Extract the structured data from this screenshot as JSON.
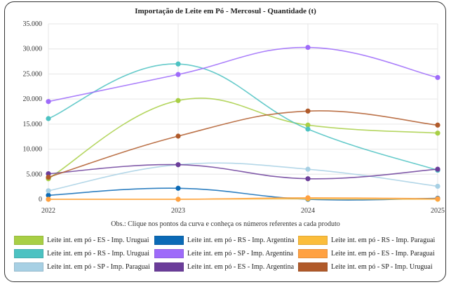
{
  "chart_data": {
    "type": "line",
    "title": "Importação de Leite em Pó - Mercosul - Quantidade (t)",
    "xlabel": "",
    "ylabel": "",
    "x": [
      "2022",
      "2023",
      "2024",
      "2025"
    ],
    "ylim": [
      0,
      35000
    ],
    "yticks": [
      "0",
      "5.000",
      "10.000",
      "15.000",
      "20.000",
      "25.000",
      "30.000",
      "35.000"
    ],
    "ytick_values": [
      0,
      5000,
      10000,
      15000,
      20000,
      25000,
      30000,
      35000
    ],
    "grid": true,
    "legend_position": "bottom",
    "series": [
      {
        "name": "Leite int. em pó - ES - Imp. Uruguai",
        "color": "#a8cf45",
        "values": [
          4100,
          19700,
          14800,
          13200
        ]
      },
      {
        "name": "Leite int. em pó - RS - Imp. Argentina",
        "color": "#0b6ab6",
        "values": [
          800,
          2200,
          0,
          200
        ]
      },
      {
        "name": "Leite int. em pó - RS - Imp. Paraguai",
        "color": "#fbbd3b",
        "values": [
          0,
          0,
          100,
          0
        ]
      },
      {
        "name": "Leite int. em pó - RS - Imp. Uruguai",
        "color": "#4cc2c2",
        "values": [
          16100,
          27000,
          14000,
          5800
        ]
      },
      {
        "name": "Leite int. em pó - SP - Imp. Argentina",
        "color": "#9e6bfa",
        "values": [
          19500,
          24900,
          30300,
          24300
        ]
      },
      {
        "name": "Leite int. em pó - ES - Imp. Paraguai",
        "color": "#ffa142",
        "values": [
          0,
          0,
          300,
          100
        ]
      },
      {
        "name": "Leite int. em pó - SP - Imp. Paraguai",
        "color": "#a7d0e4",
        "values": [
          1700,
          6900,
          6000,
          2600
        ]
      },
      {
        "name": "Leite int. em pó - ES - Imp. Argentina",
        "color": "#6b3d9a",
        "values": [
          5100,
          6900,
          4100,
          6000
        ]
      },
      {
        "name": "Leite int. em pó - SP - Imp. Uruguai",
        "color": "#b05a2a",
        "values": [
          4400,
          12600,
          17600,
          14800
        ]
      }
    ]
  },
  "note": "Obs.: Clique nos pontos da curva e conheça os números referentes a cada produto"
}
